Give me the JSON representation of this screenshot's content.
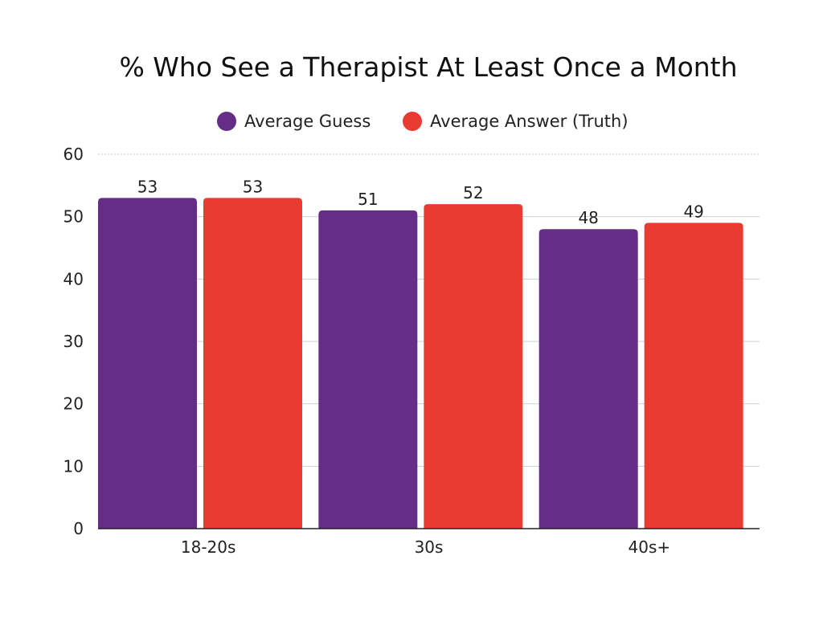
{
  "chart_data": {
    "type": "bar",
    "title": "% Who See a Therapist At Least Once a Month",
    "xlabel": "",
    "ylabel": "",
    "categories": [
      "18-20s",
      "30s",
      "40s+"
    ],
    "series": [
      {
        "name": "Average Guess",
        "color": "#662d87",
        "values": [
          53,
          51,
          48
        ]
      },
      {
        "name": "Average Answer (Truth)",
        "color": "#e83c33",
        "values": [
          53,
          52,
          49
        ]
      }
    ],
    "value_labels": [
      [
        "53",
        "51",
        "48"
      ],
      [
        "53",
        "52",
        "49"
      ]
    ],
    "ylim": [
      0,
      60
    ],
    "yticks": [
      "0",
      "10",
      "20",
      "30",
      "40",
      "50",
      "60"
    ],
    "grid": true,
    "legend_position": "top-center"
  }
}
